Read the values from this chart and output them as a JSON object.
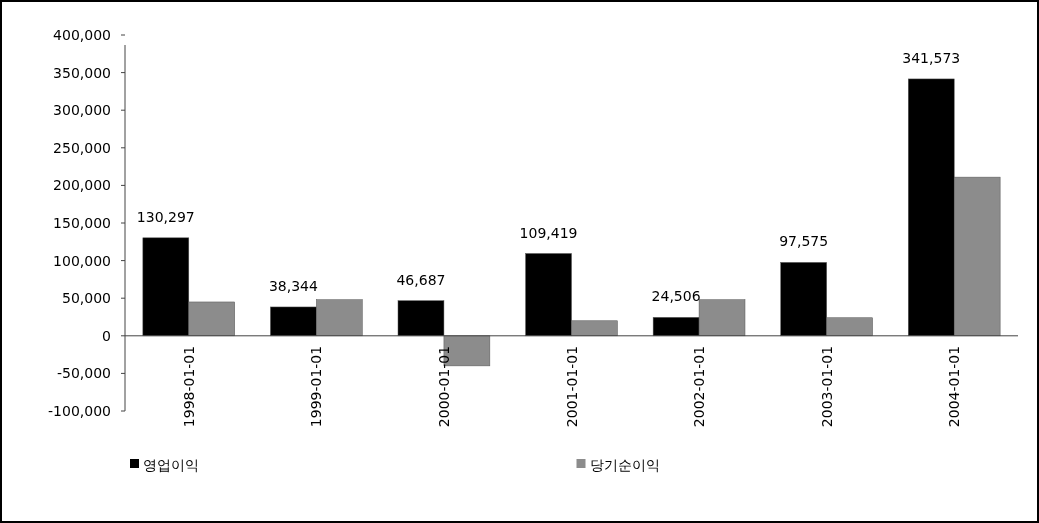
{
  "chart_data": {
    "type": "bar",
    "categories": [
      "1998-01-01",
      "1999-01-01",
      "2000-01-01",
      "2001-01-01",
      "2002-01-01",
      "2003-01-01",
      "2004-01-01"
    ],
    "series": [
      {
        "name": "영업이익",
        "color": "#000000",
        "values": [
          130297,
          38344,
          46687,
          109419,
          24506,
          97575,
          341573
        ],
        "value_labels": [
          "130,297",
          "38,344",
          "46,687",
          "109,419",
          "24,506",
          "97,575",
          "341,573"
        ]
      },
      {
        "name": "당기순이익",
        "color": "#8c8c8c",
        "values": [
          45000,
          48000,
          -40000,
          20000,
          48000,
          24000,
          211000
        ]
      }
    ],
    "ylim": [
      -100000,
      400000
    ],
    "yticks": [
      {
        "value": -100000,
        "label": "-100,000"
      },
      {
        "value": -50000,
        "label": "-50,000"
      },
      0,
      {
        "value": 50000,
        "label": "50,000"
      },
      {
        "value": 100000,
        "label": "100,000"
      },
      {
        "value": 150000,
        "label": "150,000"
      },
      {
        "value": 200000,
        "label": "200,000"
      },
      {
        "value": 250000,
        "label": "250,000"
      },
      {
        "value": 300000,
        "label": "300,000"
      },
      {
        "value": 350000,
        "label": "350,000"
      },
      {
        "value": 400000,
        "label": "400,000"
      }
    ],
    "legend": "bottom"
  }
}
